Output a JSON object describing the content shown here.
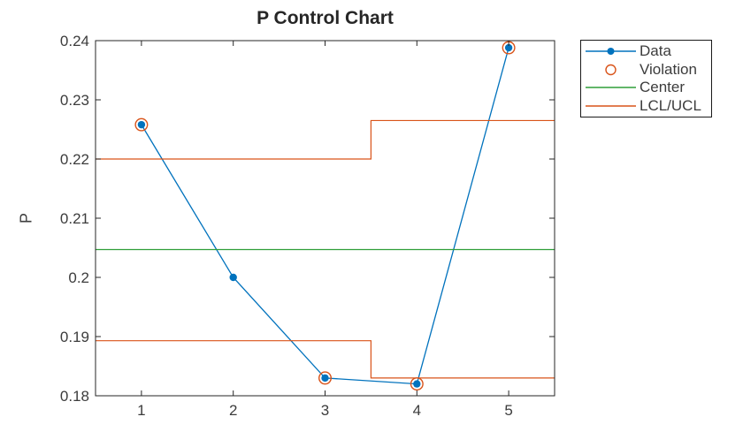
{
  "figure": {
    "title": "P Control Chart",
    "ylabel": "P",
    "background": "#ffffff"
  },
  "legend": {
    "entries": [
      {
        "label": "Data",
        "swatch": "line-with-dot",
        "color": "#0072BD"
      },
      {
        "label": "Violation",
        "swatch": "open-circle",
        "color": "#D95319"
      },
      {
        "label": "Center",
        "swatch": "line",
        "color": "#2E9E38"
      },
      {
        "label": "LCL/UCL",
        "swatch": "line",
        "color": "#D95319"
      }
    ]
  },
  "chart_data": {
    "type": "line",
    "title": "P Control Chart",
    "xlabel": "",
    "ylabel": "P",
    "xlim": [
      0.5,
      5.5
    ],
    "ylim": [
      0.18,
      0.24
    ],
    "x_ticks": [
      1,
      2,
      3,
      4,
      5
    ],
    "x_tick_labels": [
      "1",
      "2",
      "3",
      "4",
      "5"
    ],
    "y_ticks": [
      0.18,
      0.19,
      0.2,
      0.21,
      0.22,
      0.23,
      0.24
    ],
    "y_tick_labels": [
      "0.18",
      "0.19",
      "0.2",
      "0.21",
      "0.22",
      "0.23",
      "0.24"
    ],
    "grid": false,
    "legend_position": "outside-top-right",
    "series": [
      {
        "name": "Data",
        "kind": "line-markers",
        "x": [
          1,
          2,
          3,
          4,
          5
        ],
        "values": [
          0.2258,
          0.2,
          0.183,
          0.182,
          0.2388
        ],
        "color": "#0072BD",
        "marker": "filled-circle"
      },
      {
        "name": "Violation",
        "kind": "markers-only",
        "x": [
          1,
          3,
          4,
          5
        ],
        "values": [
          0.2258,
          0.183,
          0.182,
          0.2388
        ],
        "color": "#D95319",
        "marker": "open-circle"
      },
      {
        "name": "Center",
        "kind": "hline",
        "x": [
          0.5,
          5.5
        ],
        "value": 0.2047,
        "color": "#2E9E38"
      },
      {
        "name": "UCL",
        "kind": "step",
        "step_x": [
          0.5,
          3.5,
          5.5
        ],
        "step_values": [
          0.22,
          0.2265
        ],
        "color": "#D95319"
      },
      {
        "name": "LCL",
        "kind": "step",
        "step_x": [
          0.5,
          3.5,
          5.5
        ],
        "step_values": [
          0.1893,
          0.183
        ],
        "color": "#D95319"
      }
    ]
  }
}
